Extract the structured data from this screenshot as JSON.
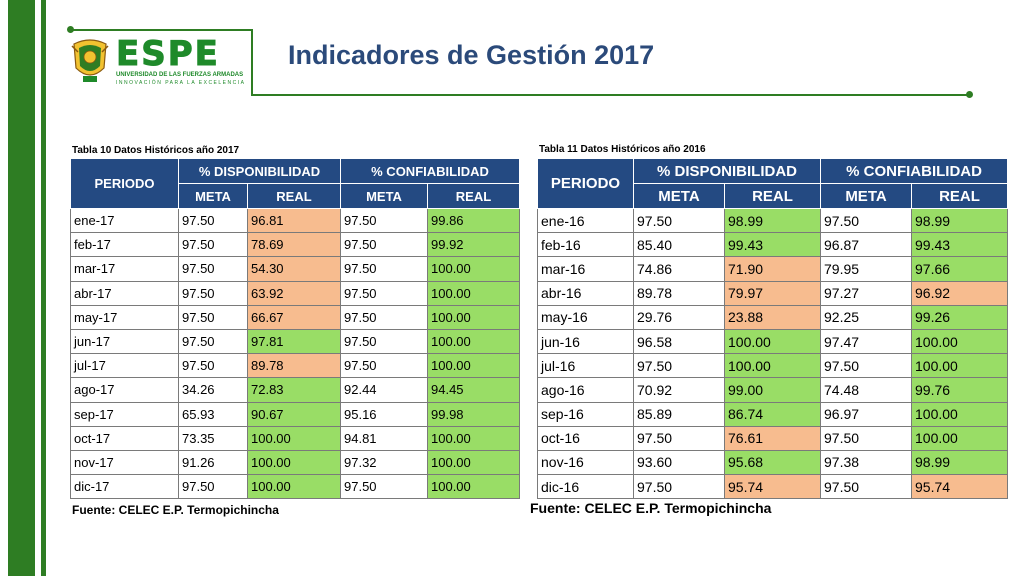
{
  "header": {
    "title": "Indicadores de Gestión 2017",
    "logo": {
      "word": "ESPE",
      "subtitle1": "UNIVERSIDAD DE LAS FUERZAS ARMADAS",
      "subtitle2": "INNOVACIÓN PARA LA EXCELENCIA"
    }
  },
  "colors": {
    "green": "#2e7d23",
    "title": "#2b4a7a",
    "table_header": "#244a82",
    "cell_green": "#99dd66",
    "cell_orange": "#f7bc8f"
  },
  "tables": [
    {
      "caption": "Tabla 10 Datos Históricos año 2017",
      "headers": {
        "periodo": "PERIODO",
        "disponibilidad": "% DISPONIBILIDAD",
        "confiabilidad": "% CONFIABILIDAD",
        "meta": "META",
        "real": "REAL"
      },
      "rows": [
        {
          "periodo": "ene-17",
          "disp_meta": "97.50",
          "disp_real": "96.81",
          "conf_meta": "97.50",
          "conf_real": "99.86",
          "disp_status": "o",
          "conf_status": "g"
        },
        {
          "periodo": "feb-17",
          "disp_meta": "97.50",
          "disp_real": "78.69",
          "conf_meta": "97.50",
          "conf_real": "99.92",
          "disp_status": "o",
          "conf_status": "g"
        },
        {
          "periodo": "mar-17",
          "disp_meta": "97.50",
          "disp_real": "54.30",
          "conf_meta": "97.50",
          "conf_real": "100.00",
          "disp_status": "o",
          "conf_status": "g"
        },
        {
          "periodo": "abr-17",
          "disp_meta": "97.50",
          "disp_real": "63.92",
          "conf_meta": "97.50",
          "conf_real": "100.00",
          "disp_status": "o",
          "conf_status": "g"
        },
        {
          "periodo": "may-17",
          "disp_meta": "97.50",
          "disp_real": "66.67",
          "conf_meta": "97.50",
          "conf_real": "100.00",
          "disp_status": "o",
          "conf_status": "g"
        },
        {
          "periodo": "jun-17",
          "disp_meta": "97.50",
          "disp_real": "97.81",
          "conf_meta": "97.50",
          "conf_real": "100.00",
          "disp_status": "g",
          "conf_status": "g"
        },
        {
          "periodo": "jul-17",
          "disp_meta": "97.50",
          "disp_real": "89.78",
          "conf_meta": "97.50",
          "conf_real": "100.00",
          "disp_status": "o",
          "conf_status": "g"
        },
        {
          "periodo": "ago-17",
          "disp_meta": "34.26",
          "disp_real": "72.83",
          "conf_meta": "92.44",
          "conf_real": "94.45",
          "disp_status": "g",
          "conf_status": "g"
        },
        {
          "periodo": "sep-17",
          "disp_meta": "65.93",
          "disp_real": "90.67",
          "conf_meta": "95.16",
          "conf_real": "99.98",
          "disp_status": "g",
          "conf_status": "g"
        },
        {
          "periodo": "oct-17",
          "disp_meta": "73.35",
          "disp_real": "100.00",
          "conf_meta": "94.81",
          "conf_real": "100.00",
          "disp_status": "g",
          "conf_status": "g"
        },
        {
          "periodo": "nov-17",
          "disp_meta": "91.26",
          "disp_real": "100.00",
          "conf_meta": "97.32",
          "conf_real": "100.00",
          "disp_status": "g",
          "conf_status": "g"
        },
        {
          "periodo": "dic-17",
          "disp_meta": "97.50",
          "disp_real": "100.00",
          "conf_meta": "97.50",
          "conf_real": "100.00",
          "disp_status": "g",
          "conf_status": "g"
        }
      ],
      "source": "Fuente: CELEC E.P. Termopichincha"
    },
    {
      "caption": "Tabla 11 Datos Históricos año 2016",
      "headers": {
        "periodo": "PERIODO",
        "disponibilidad": "% DISPONIBILIDAD",
        "confiabilidad": "% CONFIABILIDAD",
        "meta": "META",
        "real": "REAL"
      },
      "rows": [
        {
          "periodo": "ene-16",
          "disp_meta": "97.50",
          "disp_real": "98.99",
          "conf_meta": "97.50",
          "conf_real": "98.99",
          "disp_status": "g",
          "conf_status": "g"
        },
        {
          "periodo": "feb-16",
          "disp_meta": "85.40",
          "disp_real": "99.43",
          "conf_meta": "96.87",
          "conf_real": "99.43",
          "disp_status": "g",
          "conf_status": "g"
        },
        {
          "periodo": "mar-16",
          "disp_meta": "74.86",
          "disp_real": "71.90",
          "conf_meta": "79.95",
          "conf_real": "97.66",
          "disp_status": "o",
          "conf_status": "g"
        },
        {
          "periodo": "abr-16",
          "disp_meta": "89.78",
          "disp_real": "79.97",
          "conf_meta": "97.27",
          "conf_real": "96.92",
          "disp_status": "o",
          "conf_status": "o"
        },
        {
          "periodo": "may-16",
          "disp_meta": "29.76",
          "disp_real": "23.88",
          "conf_meta": "92.25",
          "conf_real": "99.26",
          "disp_status": "o",
          "conf_status": "g"
        },
        {
          "periodo": "jun-16",
          "disp_meta": "96.58",
          "disp_real": "100.00",
          "conf_meta": "97.47",
          "conf_real": "100.00",
          "disp_status": "g",
          "conf_status": "g"
        },
        {
          "periodo": "jul-16",
          "disp_meta": "97.50",
          "disp_real": "100.00",
          "conf_meta": "97.50",
          "conf_real": "100.00",
          "disp_status": "g",
          "conf_status": "g"
        },
        {
          "periodo": "ago-16",
          "disp_meta": "70.92",
          "disp_real": "99.00",
          "conf_meta": "74.48",
          "conf_real": "99.76",
          "disp_status": "g",
          "conf_status": "g"
        },
        {
          "periodo": "sep-16",
          "disp_meta": "85.89",
          "disp_real": "86.74",
          "conf_meta": "96.97",
          "conf_real": "100.00",
          "disp_status": "g",
          "conf_status": "g"
        },
        {
          "periodo": "oct-16",
          "disp_meta": "97.50",
          "disp_real": "76.61",
          "conf_meta": "97.50",
          "conf_real": "100.00",
          "disp_status": "o",
          "conf_status": "g"
        },
        {
          "periodo": "nov-16",
          "disp_meta": "93.60",
          "disp_real": "95.68",
          "conf_meta": "97.38",
          "conf_real": "98.99",
          "disp_status": "g",
          "conf_status": "g"
        },
        {
          "periodo": "dic-16",
          "disp_meta": "97.50",
          "disp_real": "95.74",
          "conf_meta": "97.50",
          "conf_real": "95.74",
          "disp_status": "o",
          "conf_status": "o"
        }
      ],
      "source": "Fuente: CELEC E.P. Termopichincha"
    }
  ]
}
